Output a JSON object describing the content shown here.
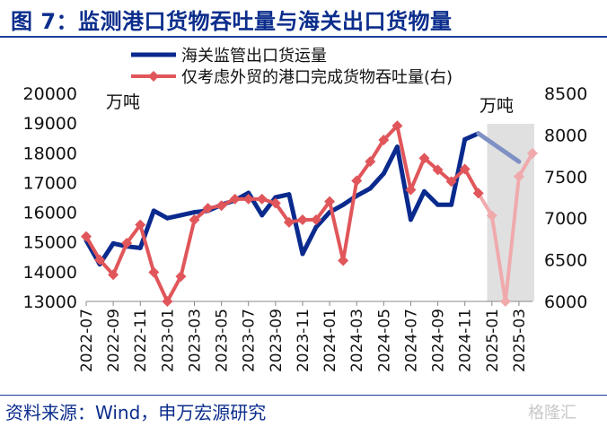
{
  "title": "图 7：监测港口货物吞吐量与海关出口货物量",
  "source": "资料来源：Wind，申万宏源研究",
  "watermark": "格隆汇",
  "colors": {
    "series1": "#0a2a8e",
    "series1_faded": "#7f91c4",
    "series2": "#e0565a",
    "series2_faded": "#f0aaac",
    "shade": "#e0e0e0",
    "title": "#0b2d8c"
  },
  "chart_data": {
    "type": "line",
    "x": [
      "2022-07",
      "2022-08",
      "2022-09",
      "2022-10",
      "2022-11",
      "2022-12",
      "2023-01",
      "2023-02",
      "2023-03",
      "2023-04",
      "2023-05",
      "2023-06",
      "2023-07",
      "2023-08",
      "2023-09",
      "2023-10",
      "2023-11",
      "2023-12",
      "2024-01",
      "2024-02",
      "2024-03",
      "2024-04",
      "2024-05",
      "2024-06",
      "2024-07",
      "2024-08",
      "2024-09",
      "2024-10",
      "2024-11",
      "2024-12",
      "2025-01",
      "2025-02",
      "2025-03",
      "2025-04"
    ],
    "xtick_labels": [
      "2022-07",
      "2022-09",
      "2022-11",
      "2023-01",
      "2023-03",
      "2023-05",
      "2023-07",
      "2023-09",
      "2023-11",
      "2024-01",
      "2024-03",
      "2024-05",
      "2024-07",
      "2024-09",
      "2024-11",
      "2025-01",
      "2025-03"
    ],
    "left_unit": "万吨",
    "right_unit": "万吨",
    "ylim_left": [
      13000,
      20000
    ],
    "yticks_left": [
      13000,
      14000,
      15000,
      16000,
      17000,
      18000,
      19000,
      20000
    ],
    "ylim_right": [
      6000,
      8500
    ],
    "yticks_right": [
      6000,
      6500,
      7000,
      7500,
      8000,
      8500
    ],
    "shaded_from": "2025-01",
    "series": [
      {
        "name": "海关监管出口货运量",
        "axis": "left",
        "marker": "none",
        "values": [
          15050,
          14250,
          14950,
          14850,
          14800,
          16050,
          15800,
          15900,
          16000,
          16050,
          16250,
          16400,
          16650,
          15900,
          16500,
          16600,
          14600,
          15500,
          16000,
          16250,
          16550,
          16800,
          17300,
          18200,
          15750,
          16700,
          16250,
          16250,
          18450,
          18650,
          null,
          null,
          17700,
          null
        ],
        "faded_from": "2024-12"
      },
      {
        "name": "仅考虑外贸的港口完成货物吞吐量(右)",
        "axis": "right",
        "marker": "diamond",
        "values": [
          6780,
          6500,
          6320,
          6700,
          6920,
          6350,
          6000,
          6300,
          6980,
          7120,
          7150,
          7230,
          7230,
          7230,
          7180,
          6950,
          6980,
          6980,
          7200,
          6490,
          7450,
          7680,
          7940,
          8110,
          7340,
          7720,
          7580,
          7440,
          7590,
          7300,
          7030,
          6000,
          7500,
          7780
        ],
        "faded_from": "2024-12"
      }
    ]
  }
}
